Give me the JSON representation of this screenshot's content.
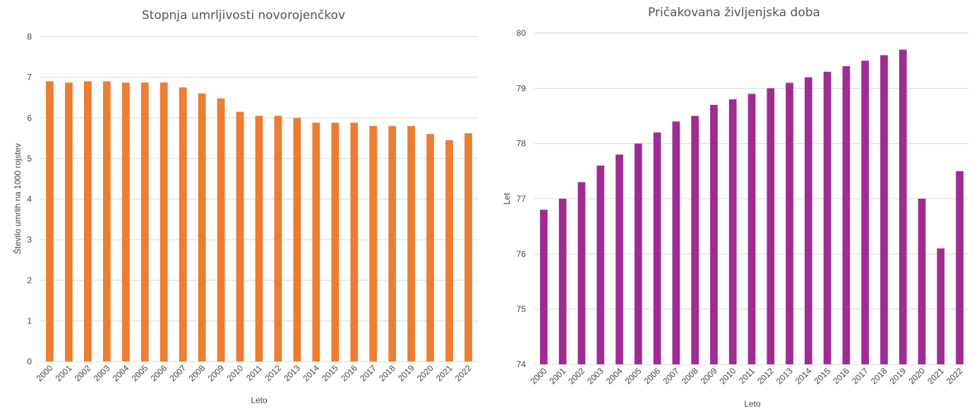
{
  "chart_data": [
    {
      "type": "bar",
      "title": "Stopnja umrljivosti novorojenčkov",
      "xlabel": "Leto",
      "ylabel": "Število umrlih na 1000 rojstev",
      "ylim": [
        0,
        8
      ],
      "yticks": [
        "0",
        "1",
        "2",
        "3",
        "4",
        "5",
        "6",
        "7",
        "8"
      ],
      "grid": true,
      "color": "#ED7D31",
      "categories": [
        "2000",
        "2001",
        "2002",
        "2003",
        "2004",
        "2005",
        "2006",
        "2007",
        "2008",
        "2009",
        "2010",
        "2011",
        "2012",
        "2013",
        "2014",
        "2015",
        "2016",
        "2017",
        "2018",
        "2019",
        "2020",
        "2021",
        "2022"
      ],
      "values": [
        6.9,
        6.87,
        6.9,
        6.9,
        6.87,
        6.87,
        6.87,
        6.75,
        6.6,
        6.48,
        6.15,
        6.05,
        6.05,
        6.0,
        5.88,
        5.88,
        5.88,
        5.8,
        5.8,
        5.8,
        5.6,
        5.45,
        5.62
      ]
    },
    {
      "type": "bar",
      "title": "Pričakovana življenjska doba",
      "xlabel": "Leto",
      "ylabel": "Let",
      "ylim": [
        74,
        80
      ],
      "yticks": [
        "74",
        "75",
        "76",
        "77",
        "78",
        "79",
        "80"
      ],
      "grid": true,
      "color": "#A02B93",
      "categories": [
        "2000",
        "2001",
        "2002",
        "2003",
        "2004",
        "2005",
        "2006",
        "2007",
        "2008",
        "2009",
        "2010",
        "2011",
        "2012",
        "2013",
        "2014",
        "2015",
        "2016",
        "2017",
        "2018",
        "2019",
        "2020",
        "2021",
        "2022"
      ],
      "values": [
        76.8,
        77.0,
        77.3,
        77.6,
        77.8,
        78.0,
        78.2,
        78.4,
        78.5,
        78.7,
        78.8,
        78.9,
        79.0,
        79.1,
        79.2,
        79.3,
        79.4,
        79.5,
        79.6,
        79.7,
        77.0,
        76.1,
        77.5
      ]
    }
  ]
}
